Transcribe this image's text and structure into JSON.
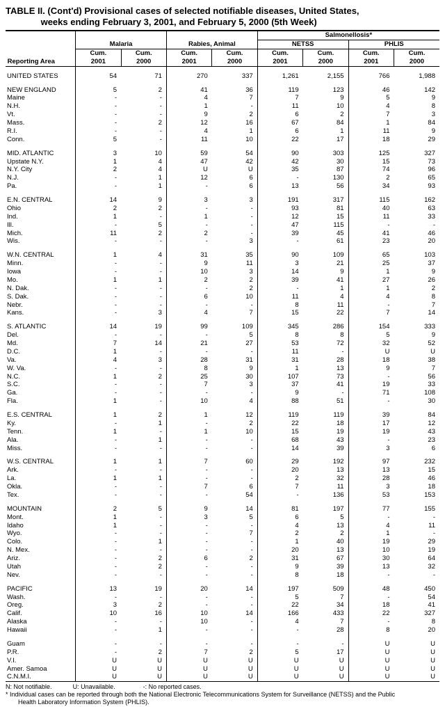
{
  "title_line1": "TABLE II. (Cont'd) Provisional cases of selected notifiable diseases, United States,",
  "title_line2": "weeks ending February 3, 2001, and February 5, 2000 (5th Week)",
  "header": {
    "reporting_area": "Reporting Area",
    "groups": [
      "Malaria",
      "Rabies, Animal",
      "Salmonellosis*"
    ],
    "subgroups_s": [
      "NETSS",
      "PHLIS"
    ],
    "cols": [
      "Cum. 2001",
      "Cum. 2000",
      "Cum. 2001",
      "Cum. 2000",
      "Cum. 2001",
      "Cum. 2000",
      "Cum. 2001",
      "Cum. 2000"
    ]
  },
  "rows": [
    {
      "section": true,
      "area": "UNITED STATES",
      "v": [
        "54",
        "71",
        "270",
        "337",
        "1,261",
        "2,155",
        "766",
        "1,988"
      ]
    },
    {
      "section": true,
      "area": "NEW ENGLAND",
      "v": [
        "5",
        "2",
        "41",
        "36",
        "119",
        "123",
        "46",
        "142"
      ]
    },
    {
      "area": "Maine",
      "v": [
        "-",
        "-",
        "4",
        "7",
        "7",
        "9",
        "5",
        "9"
      ]
    },
    {
      "area": "N.H.",
      "v": [
        "-",
        "-",
        "1",
        "-",
        "11",
        "10",
        "4",
        "8"
      ]
    },
    {
      "area": "Vt.",
      "v": [
        "-",
        "-",
        "9",
        "2",
        "6",
        "2",
        "7",
        "3"
      ]
    },
    {
      "area": "Mass.",
      "v": [
        "-",
        "2",
        "12",
        "16",
        "67",
        "84",
        "1",
        "84"
      ]
    },
    {
      "area": "R.I.",
      "v": [
        "-",
        "-",
        "4",
        "1",
        "6",
        "1",
        "11",
        "9"
      ]
    },
    {
      "area": "Conn.",
      "v": [
        "5",
        "-",
        "11",
        "10",
        "22",
        "17",
        "18",
        "29"
      ]
    },
    {
      "section": true,
      "area": "MID. ATLANTIC",
      "v": [
        "3",
        "10",
        "59",
        "54",
        "90",
        "303",
        "125",
        "327"
      ]
    },
    {
      "area": "Upstate N.Y.",
      "v": [
        "1",
        "4",
        "47",
        "42",
        "42",
        "30",
        "15",
        "73"
      ]
    },
    {
      "area": "N.Y. City",
      "v": [
        "2",
        "4",
        "U",
        "U",
        "35",
        "87",
        "74",
        "96"
      ]
    },
    {
      "area": "N.J.",
      "v": [
        "-",
        "1",
        "12",
        "6",
        "-",
        "130",
        "2",
        "65"
      ]
    },
    {
      "area": "Pa.",
      "v": [
        "-",
        "1",
        "-",
        "6",
        "13",
        "56",
        "34",
        "93"
      ]
    },
    {
      "section": true,
      "area": "E.N. CENTRAL",
      "v": [
        "14",
        "9",
        "3",
        "3",
        "191",
        "317",
        "115",
        "162"
      ]
    },
    {
      "area": "Ohio",
      "v": [
        "2",
        "2",
        "-",
        "-",
        "93",
        "81",
        "40",
        "63"
      ]
    },
    {
      "area": "Ind.",
      "v": [
        "1",
        "-",
        "1",
        "-",
        "12",
        "15",
        "11",
        "33"
      ]
    },
    {
      "area": "Ill.",
      "v": [
        "-",
        "5",
        "-",
        "-",
        "47",
        "115",
        "-",
        "-"
      ]
    },
    {
      "area": "Mich.",
      "v": [
        "11",
        "2",
        "2",
        "-",
        "39",
        "45",
        "41",
        "46"
      ]
    },
    {
      "area": "Wis.",
      "v": [
        "-",
        "-",
        "-",
        "3",
        "-",
        "61",
        "23",
        "20"
      ]
    },
    {
      "section": true,
      "area": "W.N. CENTRAL",
      "v": [
        "1",
        "4",
        "31",
        "35",
        "90",
        "109",
        "65",
        "103"
      ]
    },
    {
      "area": "Minn.",
      "v": [
        "-",
        "-",
        "9",
        "11",
        "3",
        "21",
        "25",
        "37"
      ]
    },
    {
      "area": "Iowa",
      "v": [
        "-",
        "-",
        "10",
        "3",
        "14",
        "9",
        "1",
        "9"
      ]
    },
    {
      "area": "Mo.",
      "v": [
        "1",
        "1",
        "2",
        "2",
        "39",
        "41",
        "27",
        "26"
      ]
    },
    {
      "area": "N. Dak.",
      "v": [
        "-",
        "-",
        "-",
        "2",
        "-",
        "1",
        "1",
        "2"
      ]
    },
    {
      "area": "S. Dak.",
      "v": [
        "-",
        "-",
        "6",
        "10",
        "11",
        "4",
        "4",
        "8"
      ]
    },
    {
      "area": "Nebr.",
      "v": [
        "-",
        "-",
        "-",
        "-",
        "8",
        "11",
        "-",
        "7"
      ]
    },
    {
      "area": "Kans.",
      "v": [
        "-",
        "3",
        "4",
        "7",
        "15",
        "22",
        "7",
        "14"
      ]
    },
    {
      "section": true,
      "area": "S. ATLANTIC",
      "v": [
        "14",
        "19",
        "99",
        "109",
        "345",
        "286",
        "154",
        "333"
      ]
    },
    {
      "area": "Del.",
      "v": [
        "-",
        "-",
        "-",
        "5",
        "8",
        "8",
        "5",
        "9"
      ]
    },
    {
      "area": "Md.",
      "v": [
        "7",
        "14",
        "21",
        "27",
        "53",
        "72",
        "32",
        "52"
      ]
    },
    {
      "area": "D.C.",
      "v": [
        "1",
        "-",
        "-",
        "-",
        "11",
        "-",
        "U",
        "U"
      ]
    },
    {
      "area": "Va.",
      "v": [
        "4",
        "3",
        "28",
        "31",
        "31",
        "28",
        "18",
        "38"
      ]
    },
    {
      "area": "W. Va.",
      "v": [
        "-",
        "-",
        "8",
        "9",
        "1",
        "13",
        "9",
        "7"
      ]
    },
    {
      "area": "N.C.",
      "v": [
        "1",
        "2",
        "25",
        "30",
        "107",
        "73",
        "-",
        "56"
      ]
    },
    {
      "area": "S.C.",
      "v": [
        "-",
        "-",
        "7",
        "3",
        "37",
        "41",
        "19",
        "33"
      ]
    },
    {
      "area": "Ga.",
      "v": [
        "-",
        "-",
        "-",
        "-",
        "9",
        "-",
        "71",
        "108"
      ]
    },
    {
      "area": "Fla.",
      "v": [
        "1",
        "-",
        "10",
        "4",
        "88",
        "51",
        "-",
        "30"
      ]
    },
    {
      "section": true,
      "area": "E.S. CENTRAL",
      "v": [
        "1",
        "2",
        "1",
        "12",
        "119",
        "119",
        "39",
        "84"
      ]
    },
    {
      "area": "Ky.",
      "v": [
        "-",
        "1",
        "-",
        "2",
        "22",
        "18",
        "17",
        "12"
      ]
    },
    {
      "area": "Tenn.",
      "v": [
        "1",
        "-",
        "1",
        "10",
        "15",
        "19",
        "19",
        "43"
      ]
    },
    {
      "area": "Ala.",
      "v": [
        "-",
        "1",
        "-",
        "-",
        "68",
        "43",
        "-",
        "23"
      ]
    },
    {
      "area": "Miss.",
      "v": [
        "-",
        "-",
        "-",
        "-",
        "14",
        "39",
        "3",
        "6"
      ]
    },
    {
      "section": true,
      "area": "W.S. CENTRAL",
      "v": [
        "1",
        "1",
        "7",
        "60",
        "29",
        "192",
        "97",
        "232"
      ]
    },
    {
      "area": "Ark.",
      "v": [
        "-",
        "-",
        "-",
        "-",
        "20",
        "13",
        "13",
        "15"
      ]
    },
    {
      "area": "La.",
      "v": [
        "1",
        "1",
        "-",
        "-",
        "2",
        "32",
        "28",
        "46"
      ]
    },
    {
      "area": "Okla.",
      "v": [
        "-",
        "-",
        "7",
        "6",
        "7",
        "11",
        "3",
        "18"
      ]
    },
    {
      "area": "Tex.",
      "v": [
        "-",
        "-",
        "-",
        "54",
        "-",
        "136",
        "53",
        "153"
      ]
    },
    {
      "section": true,
      "area": "MOUNTAIN",
      "v": [
        "2",
        "5",
        "9",
        "14",
        "81",
        "197",
        "77",
        "155"
      ]
    },
    {
      "area": "Mont.",
      "v": [
        "1",
        "-",
        "3",
        "5",
        "6",
        "5",
        "-",
        "-"
      ]
    },
    {
      "area": "Idaho",
      "v": [
        "1",
        "-",
        "-",
        "-",
        "4",
        "13",
        "4",
        "11"
      ]
    },
    {
      "area": "Wyo.",
      "v": [
        "-",
        "-",
        "-",
        "7",
        "2",
        "2",
        "1",
        "-"
      ]
    },
    {
      "area": "Colo.",
      "v": [
        "-",
        "1",
        "-",
        "-",
        "1",
        "40",
        "19",
        "29"
      ]
    },
    {
      "area": "N. Mex.",
      "v": [
        "-",
        "-",
        "-",
        "-",
        "20",
        "13",
        "10",
        "19"
      ]
    },
    {
      "area": "Ariz.",
      "v": [
        "-",
        "2",
        "6",
        "2",
        "31",
        "67",
        "30",
        "64"
      ]
    },
    {
      "area": "Utah",
      "v": [
        "-",
        "2",
        "-",
        "-",
        "9",
        "39",
        "13",
        "32"
      ]
    },
    {
      "area": "Nev.",
      "v": [
        "-",
        "-",
        "-",
        "-",
        "8",
        "18",
        "-",
        "-"
      ]
    },
    {
      "section": true,
      "area": "PACIFIC",
      "v": [
        "13",
        "19",
        "20",
        "14",
        "197",
        "509",
        "48",
        "450"
      ]
    },
    {
      "area": "Wash.",
      "v": [
        "-",
        "-",
        "-",
        "-",
        "5",
        "7",
        "-",
        "54"
      ]
    },
    {
      "area": "Oreg.",
      "v": [
        "3",
        "2",
        "-",
        "-",
        "22",
        "34",
        "18",
        "41"
      ]
    },
    {
      "area": "Calif.",
      "v": [
        "10",
        "16",
        "10",
        "14",
        "166",
        "433",
        "22",
        "327"
      ]
    },
    {
      "area": "Alaska",
      "v": [
        "-",
        "-",
        "10",
        "-",
        "4",
        "7",
        "-",
        "8"
      ]
    },
    {
      "area": "Hawaii",
      "v": [
        "-",
        "1",
        "-",
        "-",
        "-",
        "28",
        "8",
        "20"
      ]
    },
    {
      "section": true,
      "area": "Guam",
      "v": [
        "-",
        "-",
        "-",
        "-",
        "-",
        "-",
        "U",
        "U"
      ]
    },
    {
      "area": "P.R.",
      "v": [
        "-",
        "2",
        "7",
        "2",
        "5",
        "17",
        "U",
        "U"
      ]
    },
    {
      "area": "V.I.",
      "v": [
        "U",
        "U",
        "U",
        "U",
        "U",
        "U",
        "U",
        "U"
      ]
    },
    {
      "area": "Amer. Samoa",
      "v": [
        "U",
        "U",
        "U",
        "U",
        "U",
        "U",
        "U",
        "U"
      ]
    },
    {
      "area": "C.N.M.I.",
      "v": [
        "U",
        "U",
        "U",
        "U",
        "U",
        "U",
        "U",
        "U"
      ],
      "last": true
    }
  ],
  "footnotes": {
    "n": "N: Not notifiable.",
    "u": "U: Unavailable.",
    "dash": "-: No reported cases.",
    "star1": "* Individual cases can be reported through both the National Electronic Telecommunications System for Surveillance (NETSS) and the Public",
    "star2": "Health Laboratory Information System (PHLIS)."
  }
}
